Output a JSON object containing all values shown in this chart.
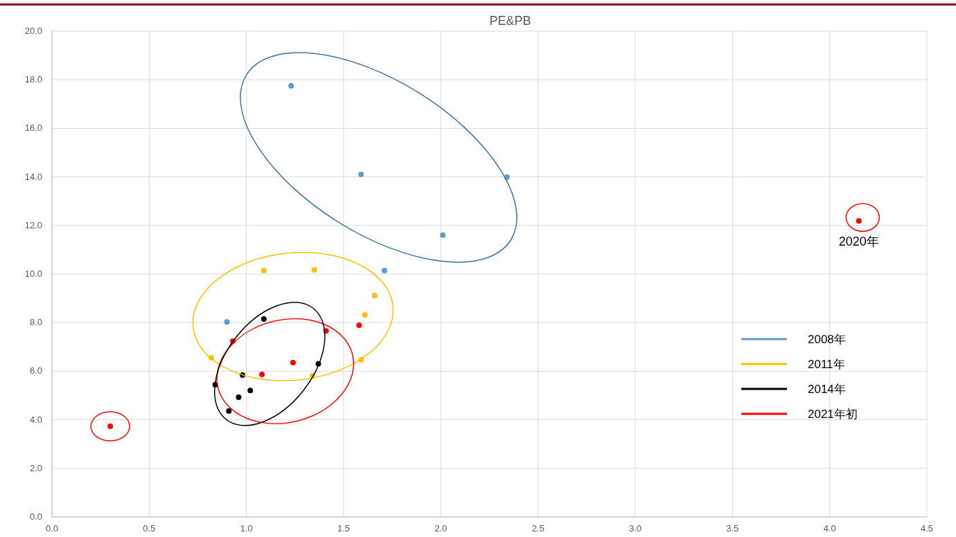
{
  "chart_data": {
    "type": "scatter",
    "title": "PE&PB",
    "xlim": [
      0,
      4.5
    ],
    "xticks": [
      {
        "value": 0,
        "label": "0.0"
      },
      {
        "value": 0.5,
        "label": "0.5"
      },
      {
        "value": 1,
        "label": "1.0"
      },
      {
        "value": 1.5,
        "label": "1.5"
      },
      {
        "value": 2,
        "label": "2.0"
      },
      {
        "value": 2.5,
        "label": "2.5"
      },
      {
        "value": 3,
        "label": "3.0"
      },
      {
        "value": 3.5,
        "label": "3.5"
      },
      {
        "value": 4,
        "label": "4.0"
      },
      {
        "value": 4.5,
        "label": "4.5"
      }
    ],
    "ylim": [
      0,
      20
    ],
    "yticks": [
      {
        "value": 0,
        "label": "0.0"
      },
      {
        "value": 2,
        "label": "2.0"
      },
      {
        "value": 4,
        "label": "4.0"
      },
      {
        "value": 6,
        "label": "6.0"
      },
      {
        "value": 8,
        "label": "8.0"
      },
      {
        "value": 10,
        "label": "10.0"
      },
      {
        "value": 12,
        "label": "12.0"
      },
      {
        "value": 14,
        "label": "14.0"
      },
      {
        "value": 16,
        "label": "16.0"
      },
      {
        "value": 18,
        "label": "18.0"
      },
      {
        "value": 20,
        "label": "20.0"
      }
    ],
    "grid": true,
    "legend": "right",
    "marker": "circle",
    "series": [
      {
        "name": "2008年",
        "color": "#5b9bd5",
        "x": [
          1.23,
          1.59,
          2.34,
          2.01,
          1.71,
          0.9
        ],
        "values": [
          17.75,
          14.1,
          13.99,
          11.6,
          10.14,
          8.03
        ]
      },
      {
        "name": "2011年",
        "color": "#ffc000",
        "x": [
          1.09,
          1.35,
          1.66,
          1.61,
          1.59,
          0.82,
          1.34
        ],
        "values": [
          10.14,
          10.17,
          9.12,
          8.32,
          6.47,
          6.55,
          5.81
        ]
      },
      {
        "name": "2014年",
        "color": "#000000",
        "x": [
          1.09,
          1.37,
          0.98,
          0.84,
          1.02,
          0.96,
          0.91
        ],
        "values": [
          8.15,
          6.3,
          5.84,
          5.44,
          5.21,
          4.93,
          4.36
        ]
      },
      {
        "name": "2021年初",
        "color": "#ff0000",
        "x": [
          0.93,
          1.41,
          1.58,
          1.24,
          1.08,
          0.3,
          4.15
        ],
        "values": [
          7.24,
          7.66,
          7.89,
          6.35,
          5.87,
          3.73,
          12.19
        ]
      }
    ],
    "annotations": [
      {
        "text": "2020年",
        "x": 4.15,
        "y": 12.19
      }
    ]
  }
}
